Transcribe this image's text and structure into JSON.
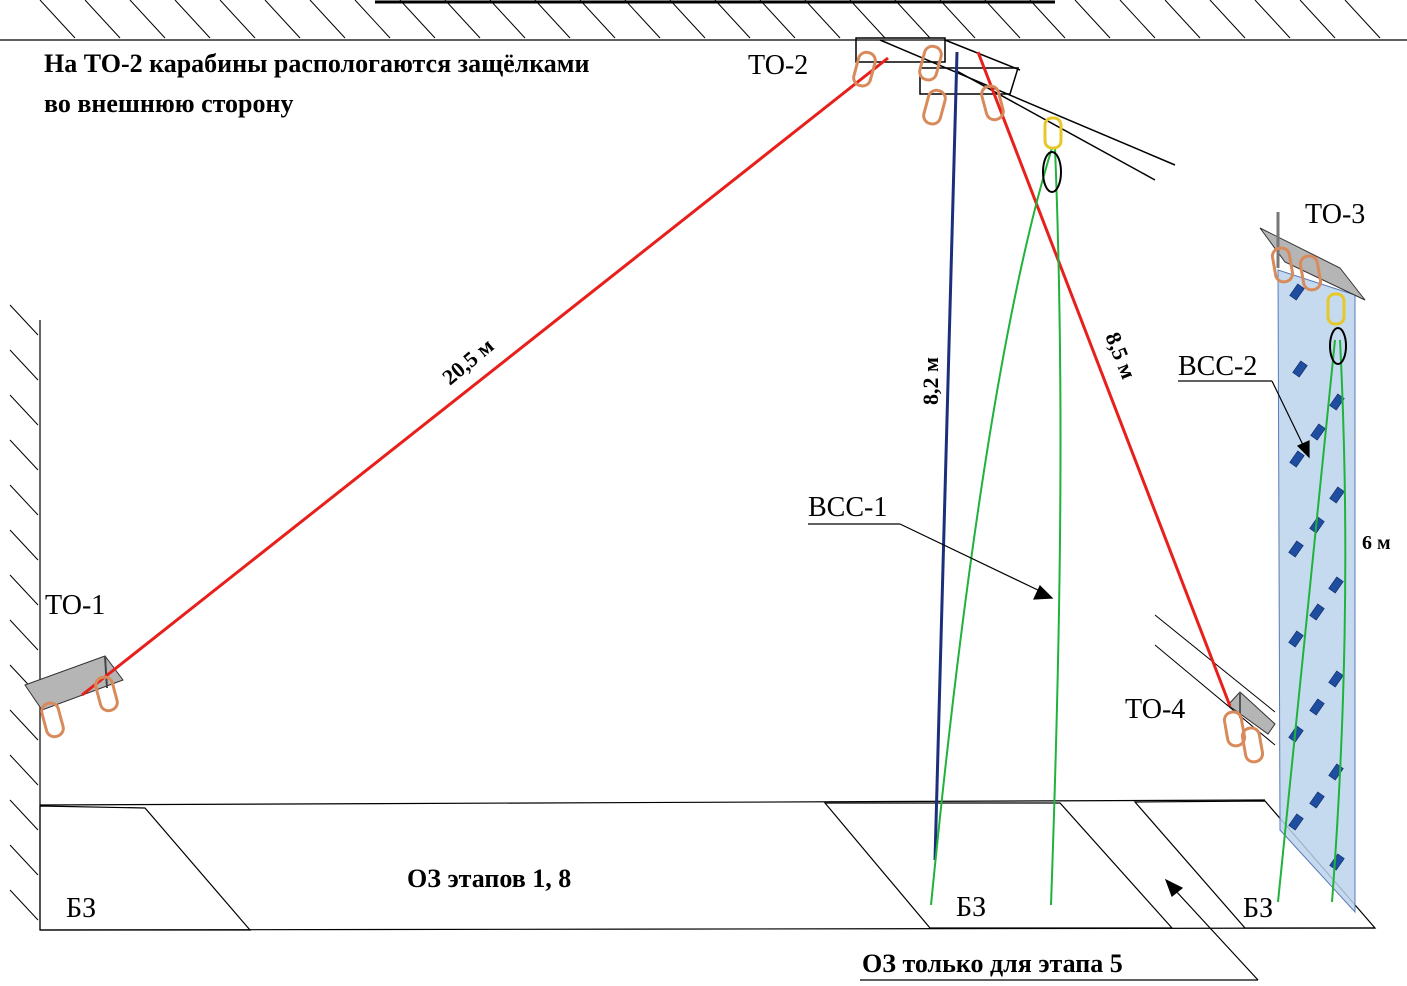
{
  "note": {
    "line1": "На ТО-2 карабины распологаются защёлками",
    "line2": "во внешнюю сторону"
  },
  "anchors": {
    "to1": "ТО-1",
    "to2": "ТО-2",
    "to3": "ТО-3",
    "to4": "ТО-4"
  },
  "ropes": {
    "main_length": "20,5 м",
    "vertical_length": "8,2 м",
    "incline_length": "8,5 м",
    "wall_height": "6 м"
  },
  "systems": {
    "vss1": "ВСС-1",
    "vss2": "ВСС-2"
  },
  "zones": {
    "safe_zone": "БЗ",
    "danger_zone_main": "ОЗ этапов 1, 8",
    "danger_zone_stage5": "ОЗ только для этапа 5"
  },
  "colors": {
    "main_rope": "#e8201c",
    "vertical_rope": "#1b2f7a",
    "belay_rope": "#1fb33b",
    "carabiner": "#d98a5a",
    "carabiner_yellow": "#e6c82a",
    "wall": "#bcd3ec",
    "hold": "#1f4ea0",
    "anchor_plate": "#b5b5b5"
  }
}
